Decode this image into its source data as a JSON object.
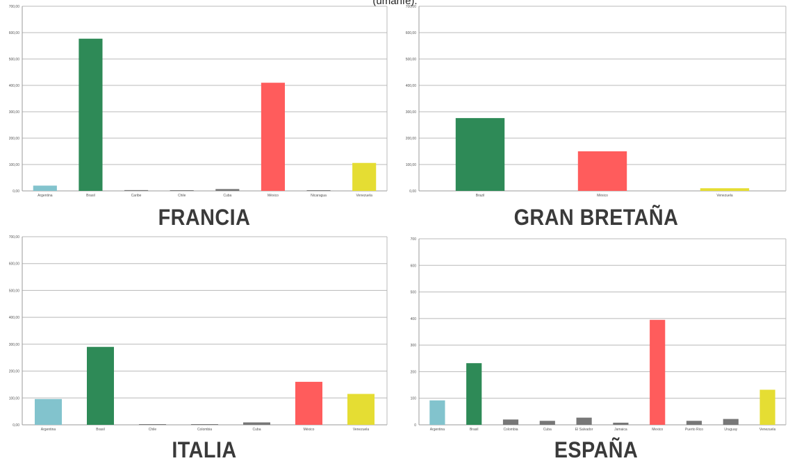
{
  "caption": "(umanfe).",
  "colors": {
    "Argentina": "#82c3cd",
    "Brasil": "#2e8a57",
    "Brazil": "#2e8a57",
    "México": "#ff5c5c",
    "Mexico": "#ff5c5c",
    "Venezuela": "#e5dd33",
    "other": "#777777",
    "grid": "#b8b8b8",
    "axis": "#999999"
  },
  "chart_data": [
    {
      "type": "bar",
      "title": "FRANCIA",
      "categories": [
        "Argentina",
        "Brasil",
        "Caribe",
        "Chile",
        "Cuba",
        "México",
        "Nicaragua",
        "Venezuela"
      ],
      "values": [
        20,
        577,
        3,
        2,
        7,
        410,
        1,
        106
      ],
      "ylim": [
        0,
        700
      ],
      "yticks": [
        "0,00",
        "100,00",
        "200,00",
        "300,00",
        "400,00",
        "500,00",
        "600,00",
        "700,00"
      ],
      "grid": true
    },
    {
      "type": "bar",
      "title": "GRAN BRETAÑA",
      "categories": [
        "Brazil",
        "México",
        "Venezuela"
      ],
      "values": [
        276,
        150,
        10
      ],
      "ylim": [
        0,
        700
      ],
      "yticks": [
        "0,00",
        "100,00",
        "200,00",
        "300,00",
        "400,00",
        "500,00",
        "600,00",
        "700,00"
      ],
      "grid": true
    },
    {
      "type": "bar",
      "title": "ITALIA",
      "categories": [
        "Argentina",
        "Brasil",
        "Chile",
        "Colombia",
        "Cuba",
        "México",
        "Venezuela"
      ],
      "values": [
        96,
        290,
        2,
        2,
        9,
        160,
        115
      ],
      "ylim": [
        0,
        700
      ],
      "yticks": [
        "0,00",
        "100,00",
        "200,00",
        "300,00",
        "400,00",
        "500,00",
        "600,00",
        "700,00"
      ],
      "grid": true
    },
    {
      "type": "bar",
      "title": "ESPAÑA",
      "categories": [
        "Argentina",
        "Brasil",
        "Colombia",
        "Cuba",
        "El Salvador",
        "Jamaica",
        "Mexico",
        "Puerto Rico",
        "Uruguay",
        "Venezuela"
      ],
      "values": [
        92,
        232,
        20,
        15,
        27,
        8,
        395,
        15,
        22,
        132
      ],
      "ylim": [
        0,
        700
      ],
      "yticks": [
        "0",
        "100",
        "200",
        "300",
        "400",
        "500",
        "600",
        "700"
      ],
      "grid": true
    }
  ]
}
